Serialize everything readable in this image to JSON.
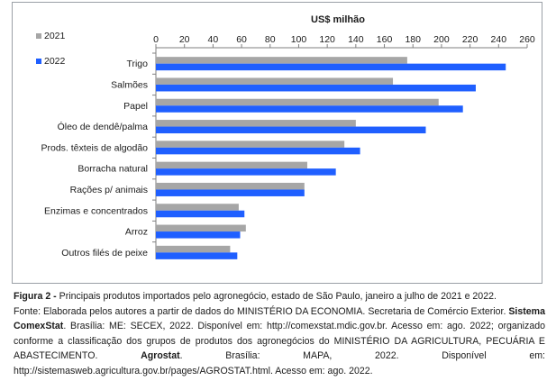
{
  "chart_data": {
    "type": "bar",
    "orientation": "horizontal",
    "title": "US$ milhão",
    "categories": [
      "Trigo",
      "Salmões",
      "Papel",
      "Óleo de dendê/palma",
      "Prods. têxteis de algodão",
      "Borracha natural",
      "Rações p/ animais",
      "Enzimas e concentrados",
      "Arroz",
      "Outros filés de peixe"
    ],
    "series": [
      {
        "name": "2021",
        "color": "#a6a6a6",
        "values": [
          176,
          166,
          198,
          140,
          132,
          106,
          104,
          58,
          63,
          52
        ]
      },
      {
        "name": "2022",
        "color": "#1f5fff",
        "values": [
          245,
          224,
          215,
          189,
          143,
          126,
          104,
          62,
          59,
          57
        ]
      }
    ],
    "xlim": [
      0,
      260
    ],
    "xticks": [
      0,
      20,
      40,
      60,
      80,
      100,
      120,
      140,
      160,
      180,
      200,
      220,
      240,
      260
    ],
    "xaxis_position": "top",
    "grid": false,
    "legend_position": "top-left"
  },
  "caption": {
    "figure_label": "Figura 2 -",
    "figure_title": " Principais produtos importados pelo agronegócio, estado de São Paulo, janeiro a julho de 2021 e 2022.",
    "source_1": "Fonte: Elaborada pelos autores a partir de dados do MINISTÉRIO DA ECONOMIA. Secretaria de Comércio Exterior. ",
    "bold_1": "Sistema ComexStat",
    "source_2": ". Brasília: ME: SECEX, 2022. Disponível em: http://comexstat.mdic.gov.br. Acesso em: ago. 2022; organizado conforme a classificação dos grupos de produtos dos agronegócios do MINISTÉRIO DA AGRICULTURA, PECUÁRIA E ABASTECIMENTO. ",
    "bold_2": "Agrostat",
    "source_3": ". Brasília: MAPA, 2022. Disponível em: http://sistemasweb.agricultura.gov.br/pages/AGROSTAT.html. Acesso em: ago. 2022."
  }
}
